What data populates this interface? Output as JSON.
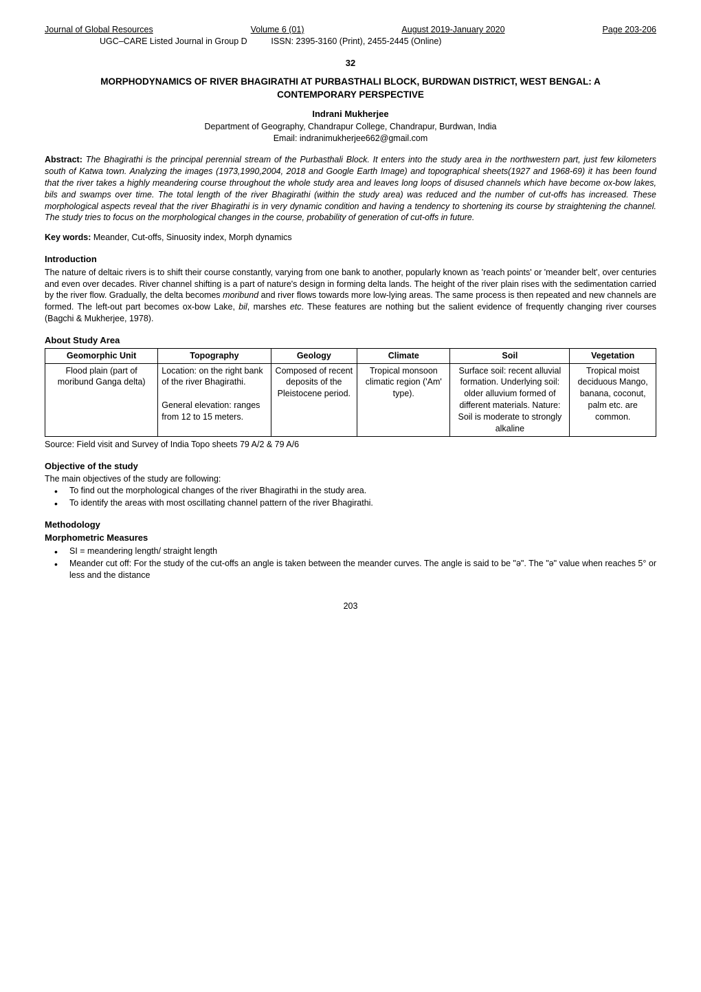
{
  "header": {
    "journal": "Journal of Global Resources",
    "volume": "Volume 6 (01)",
    "date": "August 2019-January 2020",
    "pages": "Page 203-206",
    "listing": "UGC–CARE Listed Journal in Group D",
    "issn": "ISSN: 2395-3160 (Print), 2455-2445 (Online)"
  },
  "section_number": "32",
  "title": "MORPHODYNAMICS OF RIVER BHAGIRATHI AT PURBASTHALI BLOCK, BURDWAN DISTRICT, WEST BENGAL: A CONTEMPORARY PERSPECTIVE",
  "author": "Indrani Mukherjee",
  "affiliation": "Department of Geography, Chandrapur College, Chandrapur, Burdwan, India",
  "email": "Email: indranimukherjee662@gmail.com",
  "abstract": {
    "label": "Abstract: ",
    "body": "The Bhagirathi is the principal perennial stream of the Purbasthali Block. It enters into the study area in the northwestern part, just few kilometers south of Katwa town. Analyzing the images (1973,1990,2004, 2018 and Google Earth Image) and topographical sheets(1927 and 1968-69) it has been found that the river takes a highly meandering course throughout the whole study area and leaves long loops of disused channels which have become ox-bow lakes, bils and swamps over time.  The total length of the river Bhagirathi (within the study area) was reduced and the number of cut-offs has increased. These morphological aspects reveal that the river Bhagirathi is in very dynamic condition and having a tendency to shortening its course by straightening the channel. The study tries to focus on the morphological changes in the course, probability of generation of cut-offs in future."
  },
  "keywords": {
    "label": "Key words: ",
    "body": "Meander, Cut-offs, Sinuosity index, Morph dynamics"
  },
  "introduction": {
    "heading": "Introduction",
    "body_before_ital1": "The nature of deltaic rivers is to shift their course constantly, varying from one bank to another, popularly known as 'reach points' or 'meander belt', over centuries and even over decades. River channel shifting is a part of nature's design in forming delta lands. The height of the river plain rises with the sedimentation carried by the river flow. Gradually, the delta becomes ",
    "ital1": "moribund",
    "body_mid1": " and river flows towards more low-lying areas. The same process is then repeated and new channels are formed. The left-out part becomes ox-bow Lake, ",
    "ital2": "bil",
    "body_mid2": ", marshes ",
    "ital3": "etc",
    "body_after": ". These features are nothing but the salient evidence of frequently changing river courses (Bagchi & Mukherjee, 1978)."
  },
  "study_area": {
    "heading": "About Study Area",
    "columns": [
      "Geomorphic Unit",
      "Topography",
      "Geology",
      "Climate",
      "Soil",
      "Vegetation"
    ],
    "col_widths": [
      "17%",
      "17%",
      "13%",
      "14%",
      "18%",
      "13%"
    ],
    "row": {
      "geomorphic": "Flood plain (part of moribund Ganga delta)",
      "geomorphic_ital": "moribund",
      "topography1": "Location: on the right bank of the river ",
      "topography1_ital": "Bhagirathi.",
      "topography2": "General elevation: ranges from 12 to 15 meters.",
      "geology": "Composed of recent deposits of the Pleistocene period.",
      "climate": "Tropical monsoon climatic region ('Am' type).",
      "soil": "Surface soil: recent alluvial formation. Underlying soil: older alluvium formed of different materials. Nature: Soil is moderate to strongly alkaline",
      "vegetation_before": "Tropical moist deciduous Mango, banana, coconut, palm ",
      "vegetation_ital": "etc.",
      "vegetation_after": " are common."
    },
    "source": "Source: Field visit and Survey of India Topo sheets 79 A/2 & 79 A/6"
  },
  "objective": {
    "heading": "Objective of the study",
    "intro": "The main objectives of the study are following:",
    "items": [
      "To find out the morphological changes of the river Bhagirathi in the study area.",
      "To identify the areas with most oscillating channel pattern of the river Bhagirathi."
    ]
  },
  "methodology": {
    "heading": "Methodology",
    "subheading": "Morphometric Measures",
    "items": [
      "SI = meandering length/ straight length",
      "Meander cut off: For the study of the cut-offs an angle is taken between the meander curves. The angle is said to be \"ə\". The \"ə\" value when reaches 5° or less and the distance"
    ]
  },
  "page_number": "203"
}
